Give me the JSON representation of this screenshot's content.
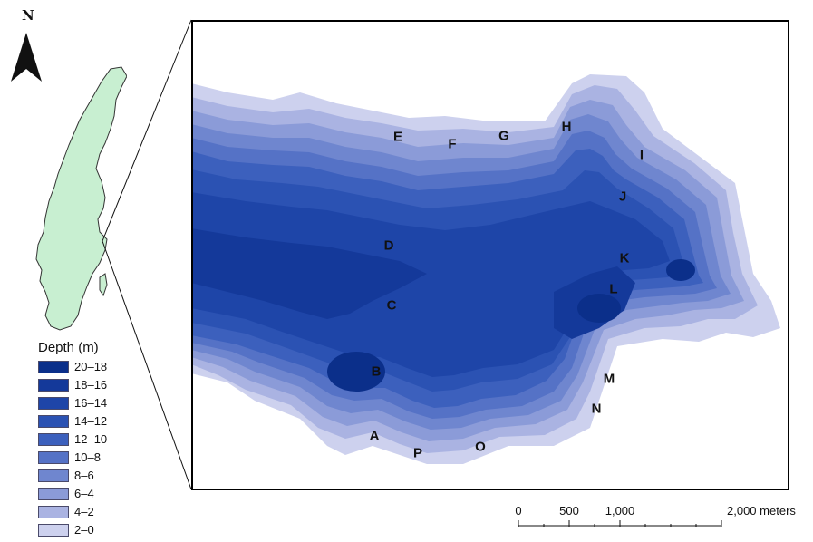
{
  "north_arrow": {
    "label": "N"
  },
  "legend": {
    "title": "Depth (m)",
    "items": [
      {
        "label": "20–18",
        "color": "#0b2f8a"
      },
      {
        "label": "18–16",
        "color": "#14399a"
      },
      {
        "label": "16–14",
        "color": "#1e45a8"
      },
      {
        "label": "14–12",
        "color": "#2b52b3"
      },
      {
        "label": "12–10",
        "color": "#3c60bd"
      },
      {
        "label": "10–8",
        "color": "#5572c6"
      },
      {
        "label": "8–6",
        "color": "#6f86cf"
      },
      {
        "label": "6–4",
        "color": "#8b9bd8"
      },
      {
        "label": "4–2",
        "color": "#aab3e2"
      },
      {
        "label": "2–0",
        "color": "#cdd1ee"
      }
    ]
  },
  "sites": [
    "A",
    "B",
    "C",
    "D",
    "E",
    "F",
    "G",
    "H",
    "I",
    "J",
    "K",
    "L",
    "M",
    "N",
    "O",
    "P"
  ],
  "scale_bar": {
    "labels": [
      "0",
      "500",
      "1,000",
      "2,000"
    ],
    "unit": "meters"
  },
  "colors": {
    "land": "#c8efd1",
    "frame": "#000000"
  }
}
